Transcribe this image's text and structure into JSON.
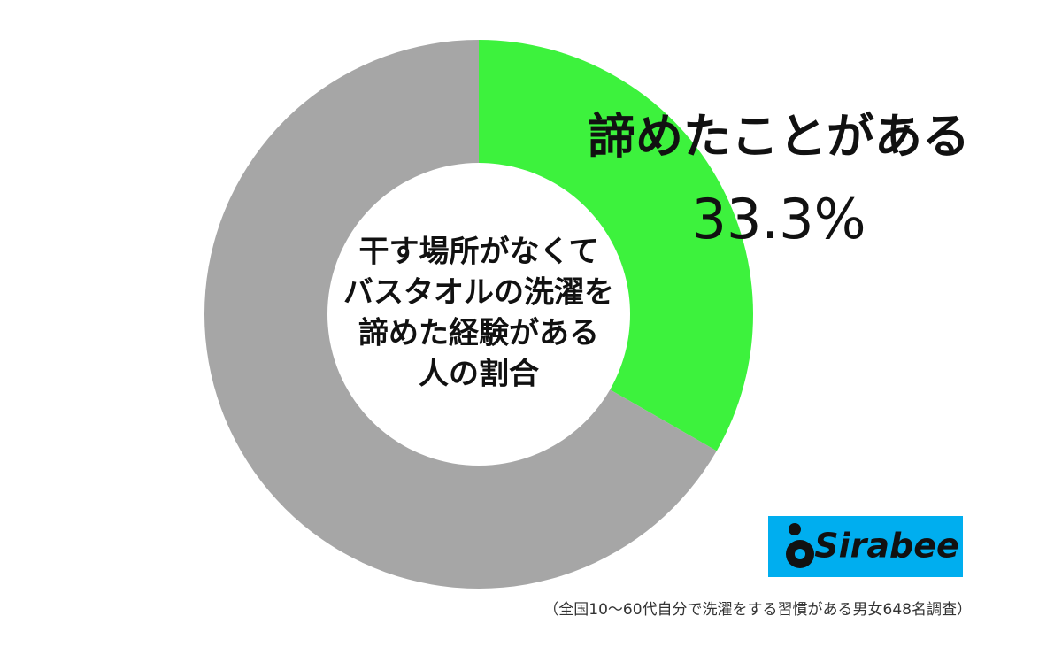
{
  "chart_data": {
    "type": "donut",
    "categories": [
      "諦めたことがある",
      null
    ],
    "values": [
      33.3,
      66.7
    ],
    "value_labels": [
      "33.3%",
      null
    ],
    "colors": [
      "#3df23d",
      "#a6a6a6"
    ],
    "center_text": [
      "干す場所がなくて",
      "バスタオルの洗濯を",
      "諦めた経験がある",
      "人の割合"
    ],
    "footnote": "（全国10〜60代自分で洗濯をする習慣がある男女648名調査）",
    "logo": "Sirabee"
  }
}
